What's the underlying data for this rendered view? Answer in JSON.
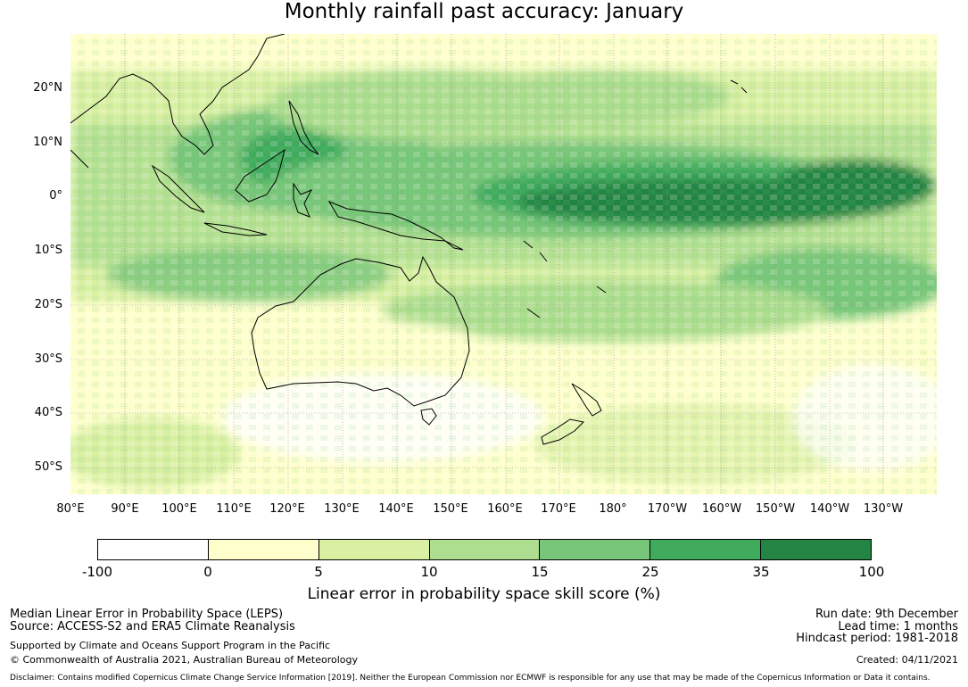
{
  "title": "Monthly rainfall past accuracy: January",
  "lat_labels": [
    "20°N",
    "10°N",
    "0°",
    "10°S",
    "20°S",
    "30°S",
    "40°S",
    "50°S"
  ],
  "lon_labels": [
    "80°E",
    "90°E",
    "100°E",
    "110°E",
    "120°E",
    "130°E",
    "140°E",
    "150°E",
    "160°E",
    "170°E",
    "180°",
    "170°W",
    "160°W",
    "150°W",
    "140°W",
    "130°W"
  ],
  "colorbar": {
    "ticks": [
      "-100",
      "0",
      "5",
      "10",
      "15",
      "25",
      "35",
      "100"
    ],
    "colors": [
      "#ffffff",
      "#ffffcc",
      "#d9f0a3",
      "#addd8e",
      "#78c679",
      "#41ab5d",
      "#238443"
    ],
    "label": "Linear error in probability space skill score (%)"
  },
  "footer": {
    "method": "Median Linear Error in Probability Space (LEPS)",
    "source": "Source: ACCESS-S2 and ERA5 Climate Reanalysis",
    "support": "Supported by Climate and Oceans Support Program in the Pacific",
    "copyright": "© Commonwealth of Australia 2021, Australian Bureau of Meteorology",
    "run_date": "Run date: 9th December",
    "lead_time": "Lead time: 1 months",
    "hindcast": "Hindcast period: 1981-2018",
    "created": "Created: 04/11/2021",
    "disclaimer": "Disclaimer: Contains modified Copernicus Climate Change Service Information [2019]. Neither the European Commission nor ECMWF is responsible for any use that may be made of the Copernicus Information or Data it contains."
  }
}
